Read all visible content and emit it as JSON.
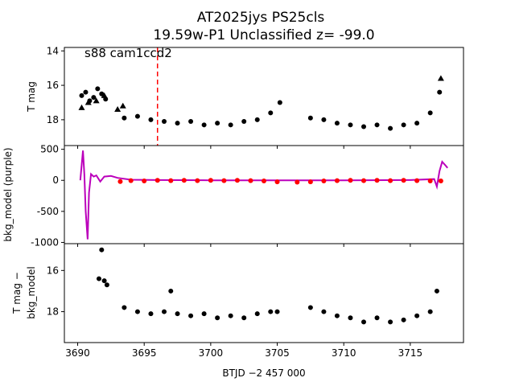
{
  "chart_data": {
    "type": "scatter",
    "title_line1": "AT2025jys  PS25cls",
    "title_line2": "19.59w-P1 Unclassified z= -99.0",
    "annotation": "s88 cam1ccd2",
    "xlabel": "BTJD −2 457 000",
    "xlim": [
      3689.0,
      3719.0
    ],
    "xticks": [
      3690,
      3695,
      3700,
      3705,
      3710,
      3715
    ],
    "marker_line_x": 3696.0,
    "marker_line_color": "#ff0000",
    "panels": [
      {
        "ylabel": "T mag",
        "ylim": [
          19.5,
          13.8
        ],
        "yticks": [
          14,
          16,
          18
        ],
        "series": [
          {
            "marker": "circle",
            "color": "#000000",
            "x": [
              3690.3,
              3690.6,
              3690.9,
              3691.2,
              3691.5,
              3691.8,
              3692.1,
              3693.5,
              3694.5,
              3695.5,
              3696.5,
              3697.5,
              3698.5,
              3699.5,
              3700.5,
              3701.5,
              3702.5,
              3703.5,
              3704.5,
              3705.2,
              3707.5,
              3708.5,
              3709.5,
              3710.5,
              3711.5,
              3712.5,
              3713.5,
              3714.5,
              3715.5,
              3716.5,
              3717.2
            ],
            "y": [
              16.6,
              16.4,
              16.9,
              16.7,
              16.2,
              16.5,
              16.8,
              17.9,
              17.8,
              18.0,
              18.1,
              18.2,
              18.1,
              18.3,
              18.2,
              18.3,
              18.1,
              18.0,
              17.6,
              17.0,
              17.9,
              18.0,
              18.2,
              18.3,
              18.4,
              18.3,
              18.5,
              18.3,
              18.2,
              17.6,
              16.4
            ]
          },
          {
            "marker": "triangle",
            "color": "#000000",
            "x": [
              3690.3,
              3690.8,
              3691.4,
              3692.0,
              3693.0,
              3693.4,
              3717.3
            ],
            "y": [
              17.3,
              17.0,
              16.9,
              16.6,
              17.4,
              17.2,
              15.6
            ]
          }
        ]
      },
      {
        "ylabel": "bkg_model (purple)",
        "ylim": [
          -1020,
          560
        ],
        "yticks": [
          500,
          0,
          -500,
          -1000
        ],
        "series": [
          {
            "name": "bkg_model",
            "marker": "line",
            "color": "#bb00bb",
            "x": [
              3690.2,
              3690.4,
              3690.5,
              3690.6,
              3690.75,
              3690.85,
              3691.0,
              3691.2,
              3691.4,
              3691.7,
              3692.0,
              3692.5,
              3693.0,
              3694.0,
              3696.0,
              3700.0,
              3705.0,
              3710.0,
              3715.0,
              3716.8,
              3717.0,
              3717.2,
              3717.4,
              3717.6,
              3717.8
            ],
            "y": [
              0,
              480,
              100,
              -500,
              -950,
              -200,
              100,
              60,
              80,
              -20,
              60,
              70,
              40,
              10,
              5,
              0,
              0,
              0,
              5,
              20,
              -100,
              150,
              300,
              250,
              200
            ]
          },
          {
            "marker": "circle",
            "color": "#ff0000",
            "x": [
              3693.2,
              3694.0,
              3695.0,
              3696.0,
              3697.0,
              3698.0,
              3699.0,
              3700.0,
              3701.0,
              3702.0,
              3703.0,
              3704.0,
              3705.0,
              3706.5,
              3707.5,
              3708.5,
              3709.5,
              3710.5,
              3711.5,
              3712.5,
              3713.5,
              3714.5,
              3715.5,
              3716.5,
              3717.3
            ],
            "y": [
              -20,
              -5,
              -10,
              0,
              -5,
              0,
              -5,
              0,
              -5,
              0,
              -5,
              -10,
              -25,
              -30,
              -25,
              -10,
              -5,
              0,
              -5,
              0,
              -5,
              0,
              -5,
              -10,
              -10
            ]
          }
        ]
      },
      {
        "ylabel": "T mag − bkg_model",
        "ylim": [
          19.5,
          14.7
        ],
        "yticks": [
          16,
          18
        ],
        "series": [
          {
            "marker": "circle",
            "color": "#000000",
            "x": [
              3691.6,
              3691.8,
              3692.0,
              3692.2,
              3693.5,
              3694.5,
              3695.5,
              3696.5,
              3697.0,
              3697.5,
              3698.5,
              3699.5,
              3700.5,
              3701.5,
              3702.5,
              3703.5,
              3704.5,
              3705.0,
              3707.5,
              3708.5,
              3709.5,
              3710.5,
              3711.5,
              3712.5,
              3713.5,
              3714.5,
              3715.5,
              3716.5,
              3717.0
            ],
            "y": [
              16.4,
              15.0,
              16.5,
              16.7,
              17.8,
              18.0,
              18.1,
              18.0,
              17.0,
              18.1,
              18.2,
              18.1,
              18.3,
              18.2,
              18.3,
              18.1,
              18.0,
              18.0,
              17.8,
              18.0,
              18.2,
              18.3,
              18.5,
              18.3,
              18.5,
              18.4,
              18.2,
              18.0,
              17.0
            ]
          }
        ]
      }
    ]
  }
}
